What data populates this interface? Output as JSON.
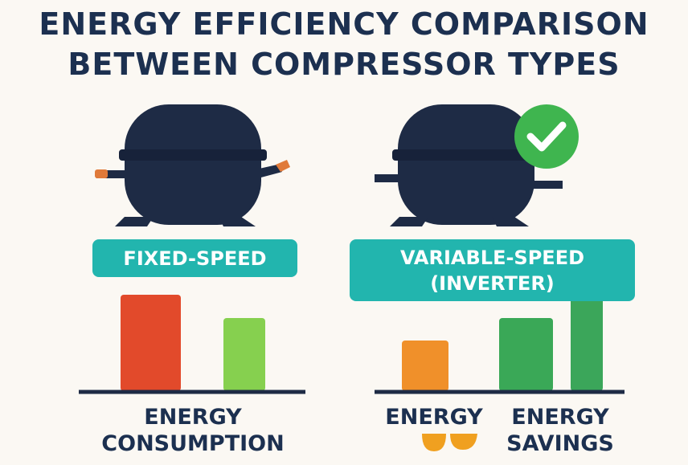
{
  "header": {
    "title_lines": [
      "ENERGY EFFICIENCY COMPARISON",
      "BETWEEN COMPRESSOR TYPES"
    ]
  },
  "panels": [
    {
      "label": "FIXED-SPEED",
      "caption": "ENERGY CONSUMPTION"
    },
    {
      "label": "VARIABLE-SPEED (INVERTER)",
      "captions": [
        "ENERGY",
        "ENERGY SAVINGS"
      ]
    }
  ]
}
